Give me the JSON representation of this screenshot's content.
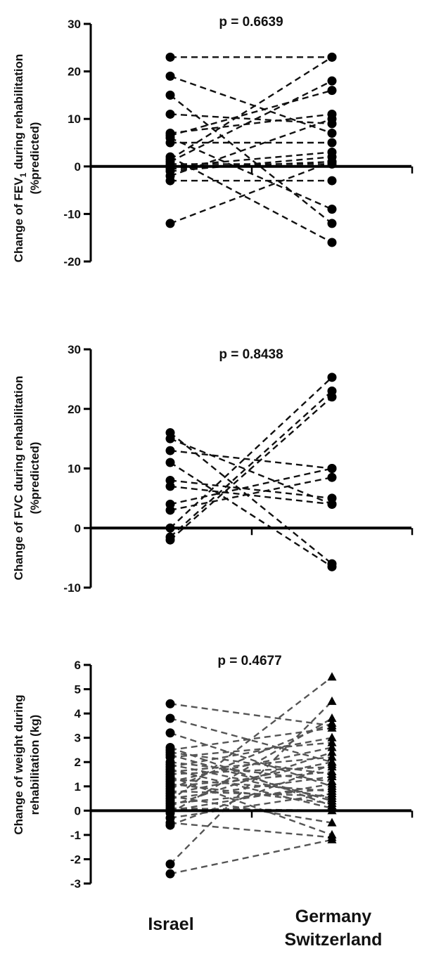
{
  "groups": {
    "left": "Israel",
    "right_line1": "Germany",
    "right_line2": "Switzerland"
  },
  "chart_data": [
    {
      "type": "line",
      "categories": [
        "Israel",
        "Germany Switzerland"
      ],
      "ylabel_line1": "Change of FEV",
      "ylabel_sub": "1",
      "ylabel_line1_end": " during rehabilitation",
      "ylabel_line2": "(%predicted)",
      "annotation": "p = 0.6639",
      "ylim": [
        -20,
        30
      ],
      "yticks": [
        30,
        20,
        10,
        0,
        -10,
        -20
      ],
      "marker": "circle",
      "color": "#111111",
      "pairs": [
        [
          23,
          23
        ],
        [
          19,
          7
        ],
        [
          15,
          -12
        ],
        [
          11,
          9
        ],
        [
          7,
          11
        ],
        [
          6.5,
          16
        ],
        [
          6,
          -9
        ],
        [
          5,
          5
        ],
        [
          2,
          -16
        ],
        [
          1.5,
          23
        ],
        [
          1,
          18
        ],
        [
          0.5,
          0.5
        ],
        [
          0,
          3
        ],
        [
          -0.5,
          1
        ],
        [
          -1,
          2
        ],
        [
          -2,
          10
        ],
        [
          -3,
          -3
        ],
        [
          -12,
          1
        ]
      ]
    },
    {
      "type": "line",
      "categories": [
        "Israel",
        "Germany Switzerland"
      ],
      "ylabel_line1": "Change of FVC during rehabilitation",
      "ylabel_line2": "(%predicted)",
      "annotation": "p = 0.8438",
      "ylim": [
        -10,
        30
      ],
      "yticks": [
        30,
        20,
        10,
        0,
        -10
      ],
      "marker": "circle",
      "color": "#111111",
      "pairs": [
        [
          16,
          -6
        ],
        [
          15,
          4
        ],
        [
          13,
          10
        ],
        [
          11,
          -6.5
        ],
        [
          8,
          5
        ],
        [
          7,
          4
        ],
        [
          4,
          10
        ],
        [
          3,
          8.5
        ],
        [
          0,
          25.3
        ],
        [
          -1.5,
          23
        ],
        [
          -2,
          22
        ]
      ]
    },
    {
      "type": "line",
      "categories": [
        "Israel",
        "Germany Switzerland"
      ],
      "ylabel_line1": "Change of weight during",
      "ylabel_line2": "rehabilitation (kg)",
      "annotation": "p = 0.4677",
      "ylim": [
        -3,
        6
      ],
      "yticks": [
        6,
        5,
        4,
        3,
        2,
        1,
        0,
        -1,
        -2,
        -3
      ],
      "marker": "circle-triangle",
      "color": "#555555",
      "pairs": [
        [
          4.4,
          3.5
        ],
        [
          3.8,
          2.0
        ],
        [
          3.2,
          1.0
        ],
        [
          2.6,
          0.2
        ],
        [
          2.5,
          3.4
        ],
        [
          2.4,
          1.5
        ],
        [
          2.3,
          0.4
        ],
        [
          2.2,
          2.8
        ],
        [
          2.0,
          1.2
        ],
        [
          1.9,
          0.5
        ],
        [
          1.8,
          3.0
        ],
        [
          1.7,
          0.1
        ],
        [
          1.6,
          2.2
        ],
        [
          1.5,
          1.8
        ],
        [
          1.4,
          -1.0
        ],
        [
          1.3,
          0.8
        ],
        [
          1.2,
          2.6
        ],
        [
          1.1,
          0.3
        ],
        [
          1.0,
          1.6
        ],
        [
          0.9,
          3.6
        ],
        [
          0.8,
          0.6
        ],
        [
          0.7,
          2.0
        ],
        [
          0.6,
          -0.5
        ],
        [
          0.5,
          1.4
        ],
        [
          0.4,
          5.5
        ],
        [
          0.3,
          0.9
        ],
        [
          0.2,
          2.4
        ],
        [
          0.1,
          0.0
        ],
        [
          0.0,
          1.1
        ],
        [
          -0.1,
          3.8
        ],
        [
          -0.3,
          0.7
        ],
        [
          -0.5,
          -1.1
        ],
        [
          -0.6,
          1.9
        ],
        [
          -2.2,
          4.5
        ],
        [
          -2.6,
          -1.2
        ]
      ]
    }
  ]
}
